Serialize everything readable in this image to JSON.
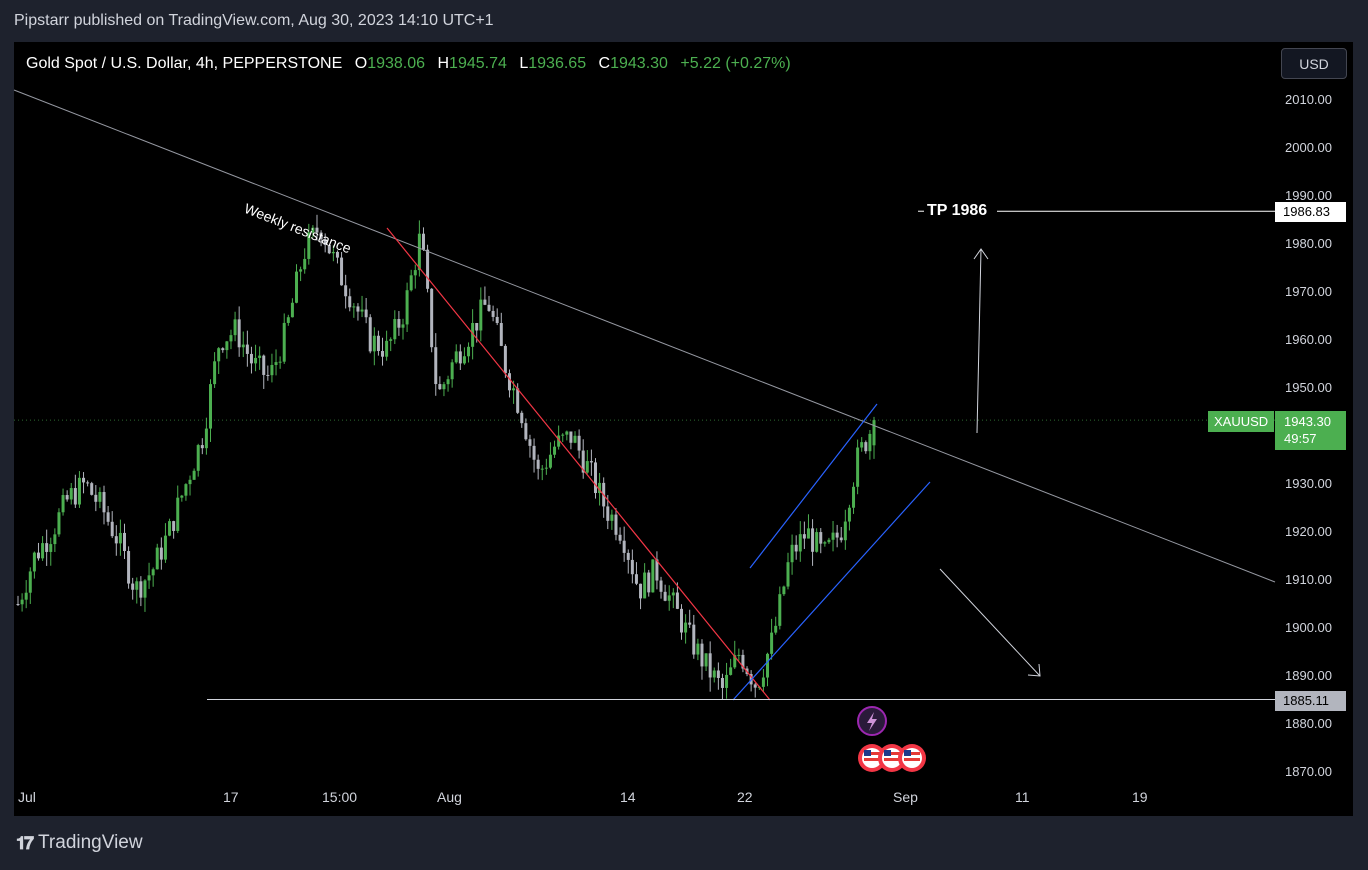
{
  "publisher": "Pipstarr published on TradingView.com, Aug 30, 2023 14:10 UTC+1",
  "header": {
    "symbol": "Gold Spot / U.S. Dollar, 4h, PEPPERSTONE",
    "o_label": "O",
    "o": "1938.06",
    "h_label": "H",
    "h": "1945.74",
    "l_label": "L",
    "l": "1936.65",
    "c_label": "C",
    "c": "1943.30",
    "change": "+5.22 (+0.27%)"
  },
  "currency_button": "USD",
  "price_axis": [
    "2010.00",
    "2000.00",
    "1990.00",
    "1980.00",
    "1970.00",
    "1960.00",
    "1950.00",
    "1930.00",
    "1920.00",
    "1910.00",
    "1900.00",
    "1890.00",
    "1880.00",
    "1870.00"
  ],
  "time_axis": [
    "Jul",
    "17",
    "15:00",
    "Aug",
    "14",
    "22",
    "Sep",
    "11",
    "19"
  ],
  "annotations": {
    "tp_text": "TP 1986",
    "tp_price": "1986.83",
    "support_price": "1885.11",
    "weekly_resistance": "Weekly resistance",
    "symbol_tag": "XAUUSD",
    "last_price": "1943.30",
    "countdown": "49:57"
  },
  "colors": {
    "up": "#4caf50",
    "down": "#b2b5be",
    "trend_red": "#f23645",
    "channel_blue": "#2962ff",
    "resistance": "#9598a1",
    "background": "#000000"
  },
  "branding": "TradingView",
  "chart_data": {
    "type": "candlestick",
    "title": "Gold Spot / U.S. Dollar, 4h, PEPPERSTONE",
    "ylim": [
      1865,
      2015
    ],
    "x_ticks": [
      "Jul",
      "17",
      "15:00",
      "Aug",
      "14",
      "22",
      "Sep",
      "11",
      "19"
    ],
    "last": {
      "open": 1938.06,
      "high": 1945.74,
      "low": 1936.65,
      "close": 1943.3,
      "change": 5.22,
      "change_pct": 0.27
    },
    "levels": {
      "take_profit": 1986.83,
      "support": 1885.11,
      "current": 1943.3
    },
    "path_points": [
      1905,
      1915,
      1920,
      1927,
      1930,
      1925,
      1918,
      1908,
      1912,
      1920,
      1930,
      1940,
      1960,
      1962,
      1955,
      1952,
      1962,
      1978,
      1984,
      1975,
      1968,
      1960,
      1958,
      1966,
      1982,
      1948,
      1956,
      1962,
      1968,
      1955,
      1945,
      1932,
      1938,
      1940,
      1933,
      1925,
      1920,
      1908,
      1912,
      1905,
      1898,
      1892,
      1887,
      1895,
      1888,
      1898,
      1915,
      1920,
      1915,
      1920,
      1935,
      1943
    ]
  }
}
